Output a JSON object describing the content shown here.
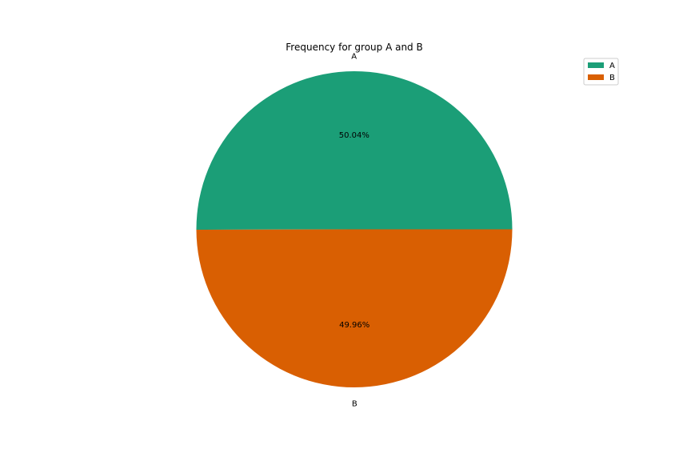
{
  "chart_data": {
    "type": "pie",
    "title": "Frequency for group A and B",
    "legend_position": "top-right",
    "slices": [
      {
        "label": "A",
        "value": 50.04,
        "pct_label": "50.04%",
        "color": "#1b9e77"
      },
      {
        "label": "B",
        "value": 49.96,
        "pct_label": "49.96%",
        "color": "#d95f02"
      }
    ]
  }
}
